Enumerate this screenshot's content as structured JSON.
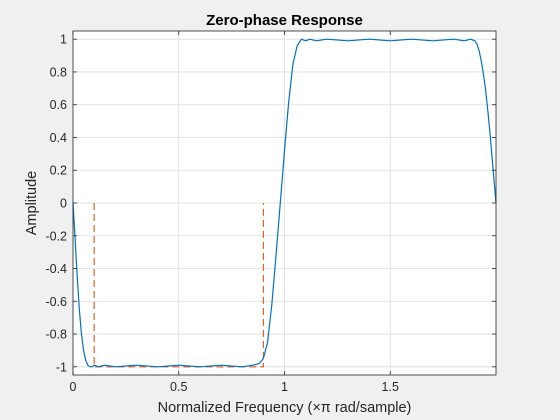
{
  "chart_data": {
    "type": "line",
    "title": "Zero-phase Response",
    "xlabel": "Normalized Frequency (×π rad/sample)",
    "ylabel": "Amplitude",
    "xlim": [
      0,
      2
    ],
    "ylim": [
      -1.05,
      1.05
    ],
    "grid": true,
    "x_ticks": [
      0,
      0.5,
      1,
      1.5
    ],
    "x_tick_labels": [
      "0",
      "0.5",
      "1",
      "1.5"
    ],
    "y_ticks": [
      1,
      0.8,
      0.6,
      0.4,
      0.2,
      0,
      -0.2,
      -0.4,
      -0.6,
      -0.8,
      -1
    ],
    "y_tick_labels": [
      "1",
      "0.8",
      "0.6",
      "0.4",
      "0.2",
      "0",
      "-0.2",
      "-0.4",
      "-0.6",
      "-0.8",
      "-1"
    ],
    "series": [
      {
        "style": "solid",
        "color": "#0072bd",
        "x": [
          0,
          0.01,
          0.02,
          0.03,
          0.04,
          0.05,
          0.06,
          0.07,
          0.08,
          0.09,
          0.1,
          0.12,
          0.15,
          0.2,
          0.3,
          0.4,
          0.5,
          0.6,
          0.7,
          0.8,
          0.85,
          0.88,
          0.9,
          0.92,
          0.94,
          0.96,
          0.98,
          1.0,
          1.02,
          1.04,
          1.06,
          1.08,
          1.1,
          1.12,
          1.15,
          1.2,
          1.3,
          1.4,
          1.5,
          1.6,
          1.7,
          1.8,
          1.85,
          1.88,
          1.9,
          1.91,
          1.92,
          1.93,
          1.94,
          1.95,
          1.96,
          1.97,
          1.98,
          1.99,
          2.0
        ],
        "y": [
          0,
          -0.22,
          -0.45,
          -0.65,
          -0.8,
          -0.9,
          -0.96,
          -0.99,
          -1.0,
          -1.0,
          -0.99,
          -1.0,
          -0.99,
          -1.0,
          -0.99,
          -1.0,
          -0.99,
          -1.0,
          -0.99,
          -1.0,
          -0.99,
          -0.98,
          -0.95,
          -0.85,
          -0.62,
          -0.32,
          0.0,
          0.32,
          0.62,
          0.85,
          0.96,
          1.0,
          0.99,
          1.0,
          0.99,
          1.0,
          0.99,
          1.0,
          0.99,
          1.0,
          0.99,
          1.0,
          0.99,
          1.0,
          0.99,
          0.97,
          0.93,
          0.87,
          0.79,
          0.7,
          0.58,
          0.45,
          0.3,
          0.15,
          0.0
        ]
      },
      {
        "style": "dashed",
        "color": "#d95319",
        "x": [
          0.1,
          0.1,
          0.9,
          0.9
        ],
        "y": [
          0,
          -1,
          -1,
          0
        ]
      }
    ]
  }
}
